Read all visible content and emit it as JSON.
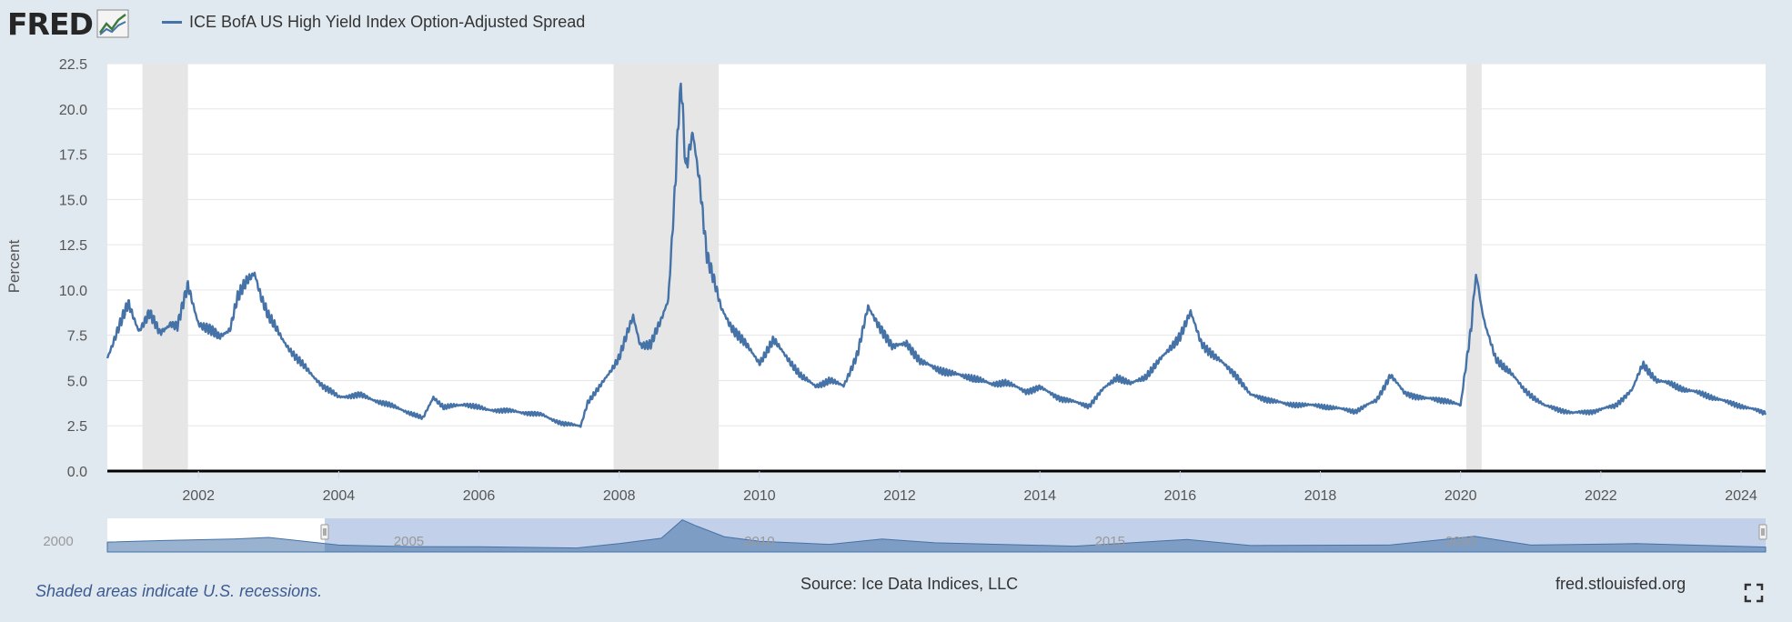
{
  "header": {
    "logo_text": "FRED",
    "logo_icon": "fred-chart-icon",
    "legend_label": "ICE BofA US High Yield Index Option-Adjusted Spread"
  },
  "footer": {
    "recession_note": "Shaded areas indicate U.S. recessions.",
    "source": "Source: Ice Data Indices, LLC",
    "site": "fred.stlouisfed.org",
    "fullscreen_icon": "expand-icon"
  },
  "colors": {
    "series": "#4572a7",
    "recession": "#e6e6e6",
    "background": "#e1e9f0",
    "plot_background": "#ffffff"
  },
  "chart_data": {
    "type": "line",
    "title": "",
    "ylabel": "Percent",
    "xlabel": "",
    "ylim": [
      0,
      22.5
    ],
    "yticks": [
      "0.0",
      "2.5",
      "5.0",
      "7.5",
      "10.0",
      "12.5",
      "15.0",
      "17.5",
      "20.0",
      "22.5"
    ],
    "xlim": [
      2000.7,
      2024.35
    ],
    "xticks": [
      "2002",
      "2004",
      "2006",
      "2008",
      "2010",
      "2012",
      "2014",
      "2016",
      "2018",
      "2020",
      "2022",
      "2024"
    ],
    "grid": "horizontal",
    "legend": "top-left",
    "recessions": [
      [
        2001.2,
        2001.85
      ],
      [
        2007.92,
        2009.42
      ],
      [
        2020.08,
        2020.3
      ]
    ],
    "navigator": {
      "ticks": [
        "2000",
        "2005",
        "2010",
        "2015",
        "2020"
      ],
      "selection": [
        2000.7,
        2024.35
      ]
    },
    "series": [
      {
        "name": "ICE BofA US High Yield Index Option-Adjusted Spread",
        "x": [
          2000.7,
          2000.85,
          2001.0,
          2001.15,
          2001.3,
          2001.45,
          2001.6,
          2001.7,
          2001.85,
          2002.0,
          2002.15,
          2002.3,
          2002.45,
          2002.55,
          2002.7,
          2002.8,
          2002.9,
          2003.0,
          2003.2,
          2003.4,
          2003.6,
          2003.8,
          2004.0,
          2004.3,
          2004.6,
          2004.9,
          2005.2,
          2005.35,
          2005.5,
          2005.8,
          2006.1,
          2006.5,
          2006.9,
          2007.2,
          2007.45,
          2007.55,
          2007.7,
          2007.9,
          2008.0,
          2008.2,
          2008.3,
          2008.45,
          2008.6,
          2008.7,
          2008.8,
          2008.88,
          2008.95,
          2009.05,
          2009.15,
          2009.25,
          2009.35,
          2009.45,
          2009.6,
          2009.8,
          2010.0,
          2010.2,
          2010.35,
          2010.45,
          2010.6,
          2010.8,
          2011.0,
          2011.2,
          2011.4,
          2011.55,
          2011.75,
          2011.9,
          2012.1,
          2012.3,
          2012.45,
          2012.7,
          2013.0,
          2013.3,
          2013.5,
          2013.8,
          2014.0,
          2014.3,
          2014.5,
          2014.7,
          2014.9,
          2015.1,
          2015.3,
          2015.5,
          2015.8,
          2016.0,
          2016.15,
          2016.3,
          2016.5,
          2016.8,
          2017.0,
          2017.5,
          2018.0,
          2018.5,
          2018.8,
          2019.0,
          2019.2,
          2019.5,
          2019.8,
          2020.0,
          2020.15,
          2020.22,
          2020.35,
          2020.5,
          2020.7,
          2020.9,
          2021.2,
          2021.6,
          2021.9,
          2022.2,
          2022.45,
          2022.6,
          2022.8,
          2023.0,
          2023.2,
          2023.5,
          2023.8,
          2024.0,
          2024.35
        ],
        "values": [
          6.3,
          7.8,
          9.2,
          7.8,
          8.7,
          7.6,
          8.2,
          8.0,
          10.2,
          8.2,
          7.8,
          7.4,
          7.9,
          9.5,
          10.5,
          11.0,
          9.6,
          8.5,
          7.3,
          6.2,
          5.4,
          4.6,
          4.1,
          4.2,
          3.8,
          3.4,
          2.9,
          4.1,
          3.5,
          3.7,
          3.4,
          3.3,
          3.1,
          2.6,
          2.5,
          3.8,
          4.5,
          5.7,
          6.3,
          8.5,
          7.0,
          7.0,
          8.3,
          9.5,
          16.0,
          21.8,
          16.5,
          18.6,
          16.0,
          12.0,
          10.5,
          9.0,
          8.0,
          7.0,
          6.0,
          7.2,
          6.5,
          6.0,
          5.2,
          4.7,
          5.0,
          4.7,
          6.5,
          9.0,
          7.8,
          6.8,
          7.1,
          6.0,
          5.8,
          5.4,
          5.2,
          4.8,
          4.9,
          4.4,
          4.6,
          4.0,
          3.8,
          3.6,
          4.5,
          5.2,
          4.8,
          5.2,
          6.5,
          7.5,
          8.7,
          7.1,
          6.3,
          5.3,
          4.2,
          3.7,
          3.6,
          3.3,
          3.9,
          5.3,
          4.3,
          4.0,
          3.9,
          3.6,
          8.0,
          10.8,
          8.0,
          6.2,
          5.5,
          4.5,
          3.6,
          3.2,
          3.3,
          3.6,
          4.5,
          5.9,
          5.0,
          4.8,
          4.5,
          4.2,
          3.8,
          3.6,
          3.2
        ]
      }
    ],
    "navigator_values": [
      {
        "x": 2000.7,
        "v": 6.5
      },
      {
        "x": 2001.5,
        "v": 7.5
      },
      {
        "x": 2002.5,
        "v": 8.5
      },
      {
        "x": 2003.0,
        "v": 9.5
      },
      {
        "x": 2004.0,
        "v": 4.5
      },
      {
        "x": 2005.0,
        "v": 3.5
      },
      {
        "x": 2006.0,
        "v": 3.4
      },
      {
        "x": 2007.4,
        "v": 2.6
      },
      {
        "x": 2008.0,
        "v": 5.5
      },
      {
        "x": 2008.6,
        "v": 9
      },
      {
        "x": 2008.9,
        "v": 21
      },
      {
        "x": 2009.1,
        "v": 17
      },
      {
        "x": 2009.5,
        "v": 10
      },
      {
        "x": 2010.0,
        "v": 7
      },
      {
        "x": 2011.0,
        "v": 5
      },
      {
        "x": 2011.75,
        "v": 8.5
      },
      {
        "x": 2012.5,
        "v": 6
      },
      {
        "x": 2014.5,
        "v": 3.8
      },
      {
        "x": 2016.1,
        "v": 8.2
      },
      {
        "x": 2017.0,
        "v": 4.2
      },
      {
        "x": 2019.0,
        "v": 4.6
      },
      {
        "x": 2020.2,
        "v": 10.2
      },
      {
        "x": 2021.0,
        "v": 4.5
      },
      {
        "x": 2022.5,
        "v": 5.5
      },
      {
        "x": 2024.35,
        "v": 3.2
      }
    ]
  }
}
